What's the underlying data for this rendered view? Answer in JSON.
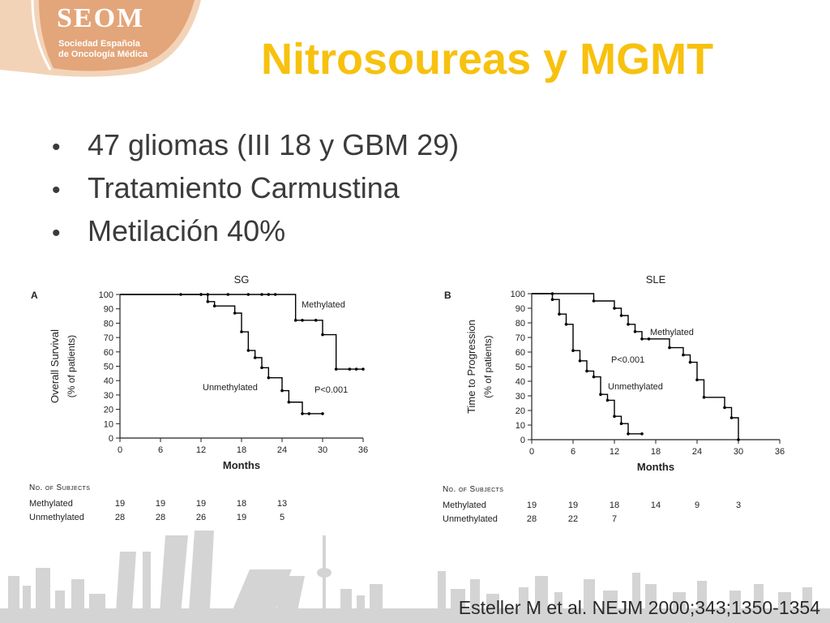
{
  "logo": {
    "name": "SEOM",
    "line1": "Sociedad Española",
    "line2": "de Oncología Médica"
  },
  "title": "Nitrosoureas y MGMT",
  "bullets": [
    "47 gliomas (III 18 y GBM 29)",
    "Tratamiento Carmustina",
    "Metilación 40%"
  ],
  "citation": "Esteller M et al. NEJM 2000;343;1350-1354",
  "colors": {
    "title": "#f7c10e",
    "logo_panel": "#e3a57a",
    "curve": "#000000",
    "skyline": "#d4d4d4"
  },
  "chart_data": [
    {
      "type": "line",
      "step": true,
      "panel_letter": "A",
      "title": "SG",
      "xlabel": "Months",
      "ylabel": [
        "Overall Survival",
        "(% of patients)"
      ],
      "xlim": [
        0,
        36
      ],
      "ylim": [
        0,
        100
      ],
      "xticks": [
        0,
        6,
        12,
        18,
        24,
        30,
        36
      ],
      "yticks": [
        0,
        10,
        20,
        30,
        40,
        50,
        60,
        70,
        80,
        90,
        100
      ],
      "series": [
        {
          "name": "Methylated",
          "x": [
            0,
            9,
            12,
            13,
            16,
            19,
            21,
            22,
            23,
            26,
            27,
            29,
            30,
            32,
            34,
            35,
            36
          ],
          "y": [
            100,
            100,
            100,
            100,
            100,
            100,
            100,
            100,
            100,
            82,
            82,
            82,
            72,
            48,
            48,
            48,
            48
          ]
        },
        {
          "name": "Unmethylated",
          "x": [
            0,
            12,
            13,
            14,
            17,
            18,
            19,
            20,
            21,
            22,
            24,
            25,
            27,
            28,
            30
          ],
          "y": [
            100,
            100,
            95,
            92,
            87,
            74,
            61,
            56,
            49,
            42,
            33,
            25,
            17,
            17,
            17
          ]
        }
      ],
      "annotation": "P<0.001",
      "table": {
        "header": "No. of Subjects",
        "x": [
          0,
          6,
          12,
          18,
          24
        ],
        "rows": [
          {
            "label": "Methylated",
            "values": [
              "19",
              "19",
              "19",
              "18",
              "13"
            ]
          },
          {
            "label": "Unmethylated",
            "values": [
              "28",
              "28",
              "26",
              "19",
              "5"
            ]
          }
        ]
      }
    },
    {
      "type": "line",
      "step": true,
      "panel_letter": "B",
      "title": "SLE",
      "xlabel": "Months",
      "ylabel": [
        "Time to Progression",
        "(% of patients)"
      ],
      "xlim": [
        0,
        36
      ],
      "ylim": [
        0,
        100
      ],
      "xticks": [
        0,
        6,
        12,
        18,
        24,
        30,
        36
      ],
      "yticks": [
        0,
        10,
        20,
        30,
        40,
        50,
        60,
        70,
        80,
        90,
        100
      ],
      "series": [
        {
          "name": "Methylated",
          "x": [
            0,
            3,
            9,
            12,
            13,
            14,
            15,
            16,
            17,
            20,
            22,
            23,
            24,
            25,
            28,
            29,
            30
          ],
          "y": [
            100,
            100,
            95,
            90,
            85,
            79,
            74,
            69,
            69,
            63,
            58,
            53,
            41,
            29,
            22,
            15,
            0
          ]
        },
        {
          "name": "Unmethylated",
          "x": [
            0,
            3,
            4,
            5,
            6,
            7,
            8,
            9,
            10,
            11,
            12,
            13,
            14,
            16
          ],
          "y": [
            100,
            96,
            86,
            79,
            61,
            54,
            47,
            43,
            31,
            27,
            16,
            11,
            4,
            4
          ]
        }
      ],
      "annotation": "P<0.001",
      "table": {
        "header": "No. of Subjects",
        "x": [
          0,
          6,
          12,
          18,
          24,
          30
        ],
        "rows": [
          {
            "label": "Methylated",
            "values": [
              "19",
              "19",
              "18",
              "14",
              "9",
              "3"
            ]
          },
          {
            "label": "Unmethylated",
            "values": [
              "28",
              "22",
              "7"
            ]
          }
        ]
      }
    }
  ]
}
